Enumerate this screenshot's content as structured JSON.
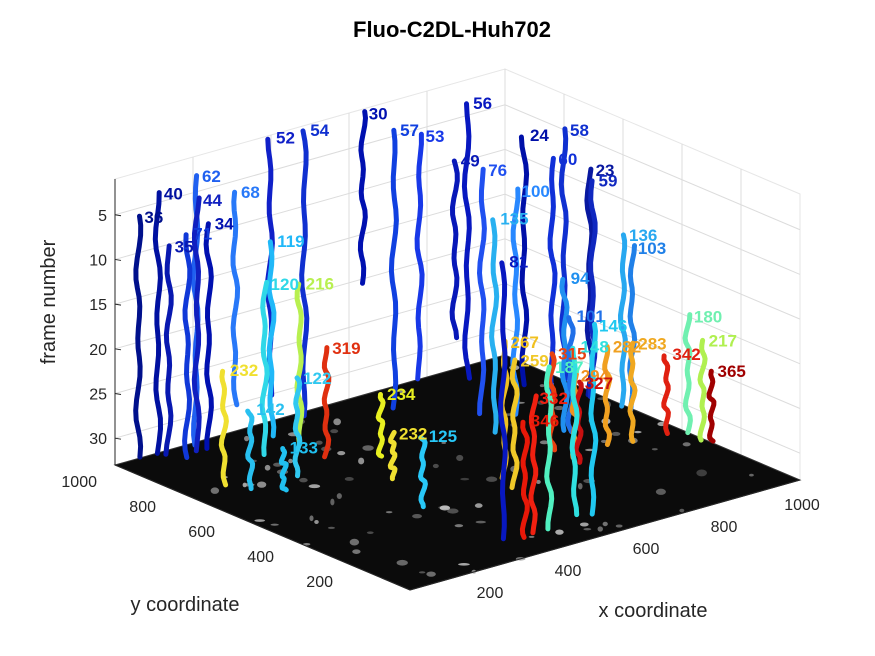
{
  "chart_data": {
    "type": "line",
    "title": "Fluo-C2DL-Huh702",
    "xlabel": "x coordinate",
    "ylabel": "y coordinate",
    "zlabel": "frame number",
    "xlim": [
      0,
      1000
    ],
    "ylim": [
      0,
      1000
    ],
    "zlim": [
      1,
      33
    ],
    "z_reversed": true,
    "grid": true,
    "colormap": "jet",
    "x_ticks": [
      "200",
      "400",
      "600",
      "800",
      "1000"
    ],
    "y_ticks": [
      "200",
      "400",
      "600",
      "800",
      "1000"
    ],
    "z_ticks": [
      "5",
      "10",
      "15",
      "20",
      "25",
      "30"
    ],
    "tracks": [
      {
        "label": "52",
        "x": 390,
        "y": 990,
        "z_start": 1,
        "z_end": 30,
        "color": "#1020c8"
      },
      {
        "label": "54",
        "x": 470,
        "y": 980,
        "z_start": 1,
        "z_end": 33,
        "color": "#1030d0"
      },
      {
        "label": "30",
        "x": 620,
        "y": 980,
        "z_start": 1,
        "z_end": 20,
        "color": "#0010b0"
      },
      {
        "label": "57",
        "x": 640,
        "y": 900,
        "z_start": 2,
        "z_end": 33,
        "color": "#1040e0"
      },
      {
        "label": "53",
        "x": 690,
        "y": 880,
        "z_start": 3,
        "z_end": 30,
        "color": "#1838e8"
      },
      {
        "label": "56",
        "x": 850,
        "y": 930,
        "z_start": 2,
        "z_end": 33,
        "color": "#0818c0"
      },
      {
        "label": "49",
        "x": 720,
        "y": 800,
        "z_start": 5,
        "z_end": 25,
        "color": "#0818b8"
      },
      {
        "label": "76",
        "x": 760,
        "y": 760,
        "z_start": 6,
        "z_end": 33,
        "color": "#2050f0"
      },
      {
        "label": "62",
        "x": 200,
        "y": 990,
        "z_start": 3,
        "z_end": 33,
        "color": "#2060f0"
      },
      {
        "label": "40",
        "x": 110,
        "y": 1000,
        "z_start": 4,
        "z_end": 33,
        "color": "#0010a0"
      },
      {
        "label": "36",
        "x": 60,
        "y": 1000,
        "z_start": 6,
        "z_end": 33,
        "color": "#00108c"
      },
      {
        "label": "35",
        "x": 130,
        "y": 990,
        "z_start": 10,
        "z_end": 33,
        "color": "#0818b0"
      },
      {
        "label": "34",
        "x": 210,
        "y": 960,
        "z_start": 8,
        "z_end": 33,
        "color": "#0010b0"
      },
      {
        "label": "68",
        "x": 300,
        "y": 990,
        "z_start": 6,
        "z_end": 30,
        "color": "#2878f8"
      },
      {
        "label": "58",
        "x": 1000,
        "y": 800,
        "z_start": 5,
        "z_end": 33,
        "color": "#1030d0"
      },
      {
        "label": "24",
        "x": 920,
        "y": 830,
        "z_start": 5,
        "z_end": 33,
        "color": "#0010a8"
      },
      {
        "label": "23",
        "x": 990,
        "y": 700,
        "z_start": 8,
        "z_end": 33,
        "color": "#0818a0"
      },
      {
        "label": "59",
        "x": 990,
        "y": 690,
        "z_start": 9,
        "z_end": 33,
        "color": "#1028c0"
      },
      {
        "label": "60",
        "x": 940,
        "y": 760,
        "z_start": 7,
        "z_end": 33,
        "color": "#1030d8"
      },
      {
        "label": "100",
        "x": 800,
        "y": 700,
        "z_start": 8,
        "z_end": 33,
        "color": "#2888ff"
      },
      {
        "label": "135",
        "x": 700,
        "y": 640,
        "z_start": 9,
        "z_end": 33,
        "color": "#28b0f0"
      },
      {
        "label": "136",
        "x": 1000,
        "y": 600,
        "z_start": 14,
        "z_end": 33,
        "color": "#28a8f0"
      },
      {
        "label": "103",
        "x": 1000,
        "y": 570,
        "z_start": 15,
        "z_end": 33,
        "color": "#2080e8"
      },
      {
        "label": "180",
        "x": 1000,
        "y": 380,
        "z_start": 20,
        "z_end": 33,
        "color": "#70f0b0"
      },
      {
        "label": "94",
        "x": 820,
        "y": 560,
        "z_start": 16,
        "z_end": 33,
        "color": "#2090f0"
      },
      {
        "label": "119",
        "x": 340,
        "y": 920,
        "z_start": 11,
        "z_end": 33,
        "color": "#20b8f8"
      },
      {
        "label": "120",
        "x": 270,
        "y": 850,
        "z_start": 14,
        "z_end": 33,
        "color": "#30d8e8"
      },
      {
        "label": "216",
        "x": 360,
        "y": 850,
        "z_start": 15,
        "z_end": 33,
        "color": "#b8f050"
      },
      {
        "label": "232",
        "x": 90,
        "y": 750,
        "z_start": 20,
        "z_end": 33,
        "color": "#f0e030"
      },
      {
        "label": "319",
        "x": 360,
        "y": 760,
        "z_start": 21,
        "z_end": 33,
        "color": "#e03010"
      },
      {
        "label": "234",
        "x": 440,
        "y": 680,
        "z_start": 26,
        "z_end": 33,
        "color": "#e8f020"
      },
      {
        "label": "232",
        "x": 380,
        "y": 560,
        "z_start": 28,
        "z_end": 33,
        "color": "#f0e030"
      },
      {
        "label": "133",
        "x": 160,
        "y": 640,
        "z_start": 28,
        "z_end": 33,
        "color": "#20c0f0"
      },
      {
        "label": "125",
        "x": 320,
        "y": 380,
        "z_start": 25,
        "z_end": 33,
        "color": "#28c8f8"
      },
      {
        "label": "146",
        "x": 560,
        "y": 120,
        "z_start": 12,
        "z_end": 33,
        "color": "#20c8f0"
      },
      {
        "label": "148",
        "x": 520,
        "y": 130,
        "z_start": 14,
        "z_end": 33,
        "color": "#30e0e0"
      },
      {
        "label": "187",
        "x": 440,
        "y": 110,
        "z_start": 15,
        "z_end": 33,
        "color": "#50f0c0"
      },
      {
        "label": "332",
        "x": 400,
        "y": 110,
        "z_start": 18,
        "z_end": 33,
        "color": "#f02010"
      },
      {
        "label": "346",
        "x": 370,
        "y": 100,
        "z_start": 20,
        "z_end": 33,
        "color": "#e81808"
      },
      {
        "label": "81",
        "x": 330,
        "y": 120,
        "z_start": 2,
        "z_end": 33,
        "color": "#0818c0"
      },
      {
        "label": "294",
        "x": 740,
        "y": 420,
        "z_start": 24,
        "z_end": 33,
        "color": "#f09020"
      },
      {
        "label": "315",
        "x": 720,
        "y": 470,
        "z_start": 22,
        "z_end": 33,
        "color": "#e84010"
      },
      {
        "label": "282",
        "x": 830,
        "y": 430,
        "z_start": 22,
        "z_end": 33,
        "color": "#f0a020"
      },
      {
        "label": "283",
        "x": 880,
        "y": 410,
        "z_start": 22,
        "z_end": 33,
        "color": "#f0a820"
      },
      {
        "label": "342",
        "x": 960,
        "y": 400,
        "z_start": 24,
        "z_end": 33,
        "color": "#e02010"
      },
      {
        "label": "365",
        "x": 1000,
        "y": 300,
        "z_start": 25,
        "z_end": 33,
        "color": "#a00000"
      },
      {
        "label": "217",
        "x": 1000,
        "y": 330,
        "z_start": 22,
        "z_end": 33,
        "color": "#b0f050"
      },
      {
        "label": "267",
        "x": 560,
        "y": 420,
        "z_start": 18,
        "z_end": 33,
        "color": "#f0c020"
      },
      {
        "label": "259",
        "x": 540,
        "y": 360,
        "z_start": 19,
        "z_end": 33,
        "color": "#f0c828"
      },
      {
        "label": "327",
        "x": 720,
        "y": 380,
        "z_start": 24,
        "z_end": 33,
        "color": "#c81010"
      },
      {
        "label": "101",
        "x": 820,
        "y": 540,
        "z_start": 20,
        "z_end": 33,
        "color": "#2070e8"
      },
      {
        "label": "142",
        "x": 120,
        "y": 700,
        "z_start": 24,
        "z_end": 33,
        "color": "#28c0f0"
      },
      {
        "label": "122",
        "x": 240,
        "y": 700,
        "z_start": 22,
        "z_end": 33,
        "color": "#30c8f0"
      },
      {
        "label": "71",
        "x": 140,
        "y": 940,
        "z_start": 8,
        "z_end": 33,
        "color": "#1038d8"
      },
      {
        "label": "44",
        "x": 180,
        "y": 960,
        "z_start": 5,
        "z_end": 33,
        "color": "#1020c0"
      }
    ]
  }
}
